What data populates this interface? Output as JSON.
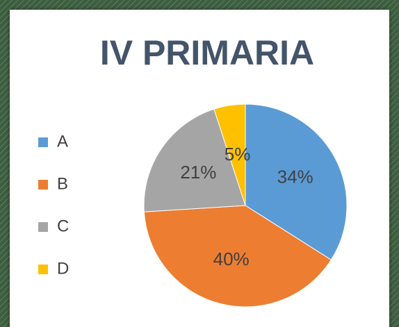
{
  "chart_data": {
    "type": "pie",
    "title": "IV PRIMARIA",
    "categories": [
      "A",
      "B",
      "C",
      "D"
    ],
    "values": [
      34,
      40,
      21,
      5
    ],
    "value_labels": [
      "34%",
      "40%",
      "21%",
      "5%"
    ],
    "colors": [
      "#5b9bd5",
      "#ed7d31",
      "#a5a5a5",
      "#ffc000"
    ],
    "legend": "left"
  }
}
